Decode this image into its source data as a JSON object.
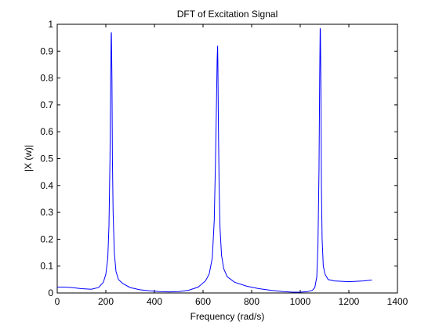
{
  "chart_data": {
    "type": "line",
    "title": "DFT of Excitation Signal",
    "xlabel": "Frequency (rad/s)",
    "ylabel": "|X (w)|",
    "xlim": [
      0,
      1400
    ],
    "ylim": [
      0,
      1
    ],
    "xticks": [
      0,
      200,
      400,
      600,
      800,
      1000,
      1200,
      1400
    ],
    "yticks": [
      0,
      0.1,
      0.2,
      0.3,
      0.4,
      0.5,
      0.6,
      0.7,
      0.8,
      0.9,
      1
    ],
    "xtick_labels": [
      "0",
      "200",
      "400",
      "600",
      "800",
      "1000",
      "1200",
      "1400"
    ],
    "ytick_labels": [
      "0",
      "0.1",
      "0.2",
      "0.3",
      "0.4",
      "0.5",
      "0.6",
      "0.7",
      "0.8",
      "0.9",
      "1"
    ],
    "grid": false,
    "line_color": "#0000ff",
    "series": [
      {
        "x": [
          0,
          30,
          60,
          100,
          140,
          170,
          190,
          200,
          208,
          213,
          217,
          220,
          222,
          223,
          225,
          227,
          230,
          235,
          242,
          252,
          270,
          300,
          340,
          380,
          420,
          460,
          500,
          540,
          580,
          610,
          625,
          638,
          646,
          651,
          655,
          658,
          660,
          661,
          663,
          666,
          670,
          676,
          685,
          700,
          730,
          780,
          830,
          880,
          930,
          970,
          1000,
          1030,
          1050,
          1060,
          1068,
          1073,
          1077,
          1080,
          1082,
          1083,
          1085,
          1087,
          1090,
          1095,
          1102,
          1115,
          1140,
          1200,
          1260,
          1295
        ],
        "y": [
          0.022,
          0.022,
          0.02,
          0.016,
          0.014,
          0.02,
          0.04,
          0.07,
          0.13,
          0.25,
          0.5,
          0.8,
          0.96,
          0.97,
          0.8,
          0.5,
          0.3,
          0.15,
          0.08,
          0.05,
          0.035,
          0.02,
          0.012,
          0.008,
          0.005,
          0.004,
          0.005,
          0.01,
          0.022,
          0.045,
          0.07,
          0.13,
          0.27,
          0.48,
          0.7,
          0.87,
          0.92,
          0.86,
          0.65,
          0.4,
          0.24,
          0.14,
          0.09,
          0.06,
          0.04,
          0.025,
          0.016,
          0.01,
          0.005,
          0.003,
          0.003,
          0.005,
          0.01,
          0.02,
          0.06,
          0.18,
          0.45,
          0.8,
          0.985,
          0.98,
          0.75,
          0.4,
          0.2,
          0.1,
          0.07,
          0.05,
          0.045,
          0.042,
          0.045,
          0.048
        ]
      }
    ]
  }
}
